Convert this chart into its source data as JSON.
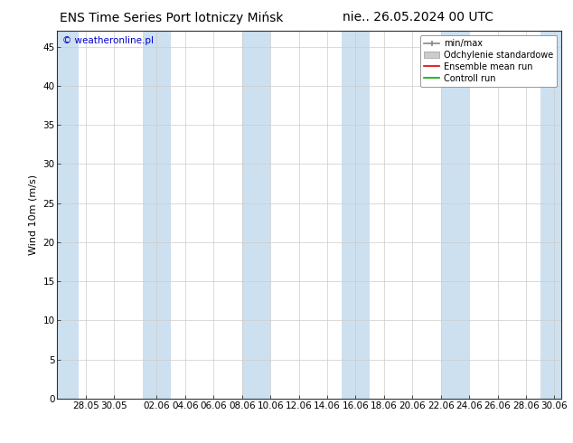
{
  "title_left": "ENS Time Series Port lotniczy Mińsk",
  "title_right": "nie.. 26.05.2024 00 UTC",
  "ylabel": "Wind 10m (m/s)",
  "watermark": "© weatheronline.pl",
  "watermark_color": "#0000cc",
  "background_color": "#ffffff",
  "plot_bg_color": "#ffffff",
  "shaded_color": "#cce0f0",
  "ylim": [
    0,
    47
  ],
  "yticks": [
    0,
    5,
    10,
    15,
    20,
    25,
    30,
    35,
    40,
    45
  ],
  "xtick_labels": [
    "28.05",
    "30.05",
    "02.06",
    "04.06",
    "06.06",
    "08.06",
    "10.06",
    "12.06",
    "14.06",
    "16.06",
    "18.06",
    "20.06",
    "22.06",
    "24.06",
    "26.06",
    "28.06",
    "30.06"
  ],
  "title_fontsize": 10,
  "axis_fontsize": 8,
  "tick_fontsize": 7.5
}
